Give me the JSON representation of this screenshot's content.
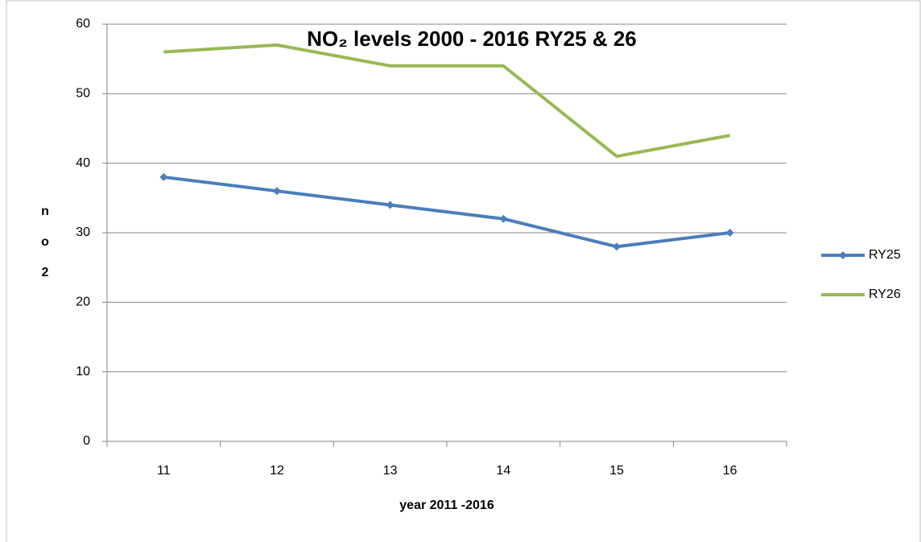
{
  "chart_data": {
    "type": "line",
    "title": "NO₂ levels 2000 - 2016 RY25 & 26",
    "x_label": "year 2011 -2016",
    "y_label": "no2",
    "categories": [
      "11",
      "12",
      "13",
      "14",
      "15",
      "16"
    ],
    "series": [
      {
        "name": "RY25",
        "color": "#4a7ebb",
        "marker": "diamond",
        "values": [
          38,
          36,
          34,
          32,
          28,
          30
        ]
      },
      {
        "name": "RY26",
        "color": "#98b954",
        "marker": "none",
        "values": [
          56,
          57,
          54,
          54,
          41,
          44
        ]
      }
    ],
    "ylim": [
      0,
      60
    ],
    "yticks": [
      0,
      10,
      20,
      30,
      40,
      50,
      60
    ],
    "grid": true,
    "legend": "right"
  }
}
